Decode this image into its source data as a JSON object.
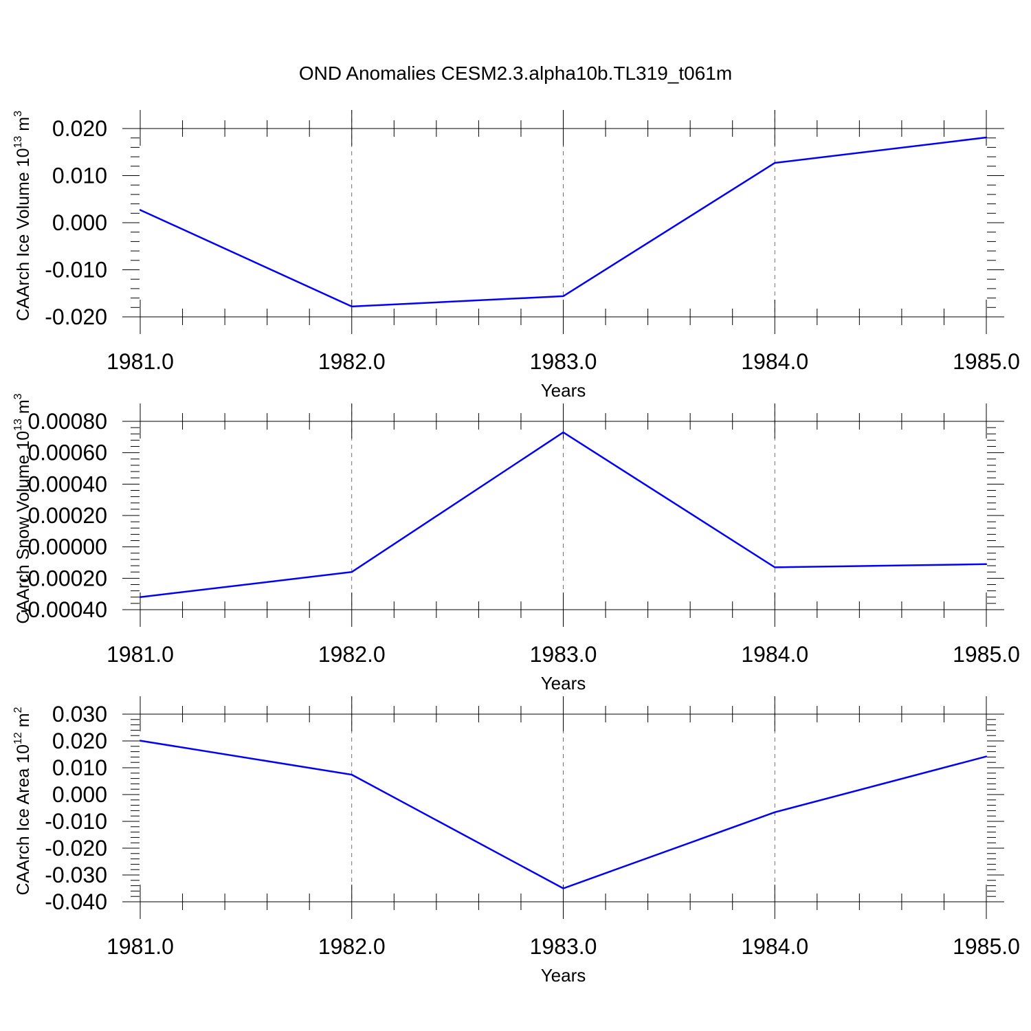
{
  "title": "OND Anomalies CESM2.3.alpha10b.TL319_t061m",
  "chart_data": [
    {
      "type": "line",
      "ylabel": "CAArch Ice Volume 10",
      "ylabel_exp": "13",
      "ylabel_unit": " m",
      "ylabel_unit_exp": "3",
      "xlabel": "Years",
      "x": [
        1981.0,
        1982.0,
        1983.0,
        1984.0,
        1985.0
      ],
      "xticks": [
        "1981.0",
        "1982.0",
        "1983.0",
        "1984.0",
        "1985.0"
      ],
      "xlim": [
        1981.0,
        1985.0
      ],
      "y": [
        0.0027,
        -0.0178,
        -0.0156,
        0.0127,
        0.0181
      ],
      "ylim": [
        -0.02,
        0.02
      ],
      "yticks": [
        0.02,
        0.01,
        0.0,
        -0.01,
        -0.02
      ],
      "ytick_labels": [
        "0.020",
        "0.010",
        "0.000",
        "-0.010",
        "-0.020"
      ],
      "grid": "vertical dashed",
      "color": "#0000ff"
    },
    {
      "type": "line",
      "ylabel": "CAArch Snow Volume 10",
      "ylabel_exp": "13",
      "ylabel_unit": " m",
      "ylabel_unit_exp": "3",
      "xlabel": "Years",
      "x": [
        1981.0,
        1982.0,
        1983.0,
        1984.0,
        1985.0
      ],
      "xticks": [
        "1981.0",
        "1982.0",
        "1983.0",
        "1984.0",
        "1985.0"
      ],
      "xlim": [
        1981.0,
        1985.0
      ],
      "y": [
        -0.00032,
        -0.00016,
        0.00073,
        -0.00013,
        -0.00011
      ],
      "ylim": [
        -0.0004,
        0.0008
      ],
      "yticks": [
        0.0008,
        0.0006,
        0.0004,
        0.0002,
        0.0,
        -0.0002,
        -0.0004
      ],
      "ytick_labels": [
        "0.00080",
        "0.00060",
        "0.00040",
        "0.00020",
        "0.00000",
        "-0.00020",
        "-0.00040"
      ],
      "grid": "vertical dashed",
      "color": "#0000ff"
    },
    {
      "type": "line",
      "ylabel": "CAArch Ice Area 10",
      "ylabel_exp": "12",
      "ylabel_unit": " m",
      "ylabel_unit_exp": "2",
      "xlabel": "Years",
      "x": [
        1981.0,
        1982.0,
        1983.0,
        1984.0,
        1985.0
      ],
      "xticks": [
        "1981.0",
        "1982.0",
        "1983.0",
        "1984.0",
        "1985.0"
      ],
      "xlim": [
        1981.0,
        1985.0
      ],
      "y": [
        0.0201,
        0.0074,
        -0.035,
        -0.0066,
        0.0142
      ],
      "ylim": [
        -0.04,
        0.03
      ],
      "yticks": [
        0.03,
        0.02,
        0.01,
        0.0,
        -0.01,
        -0.02,
        -0.03,
        -0.04
      ],
      "ytick_labels": [
        "0.030",
        "0.020",
        "0.010",
        "0.000",
        "-0.010",
        "-0.020",
        "-0.030",
        "-0.040"
      ],
      "grid": "vertical dashed",
      "color": "#0000ff"
    }
  ]
}
